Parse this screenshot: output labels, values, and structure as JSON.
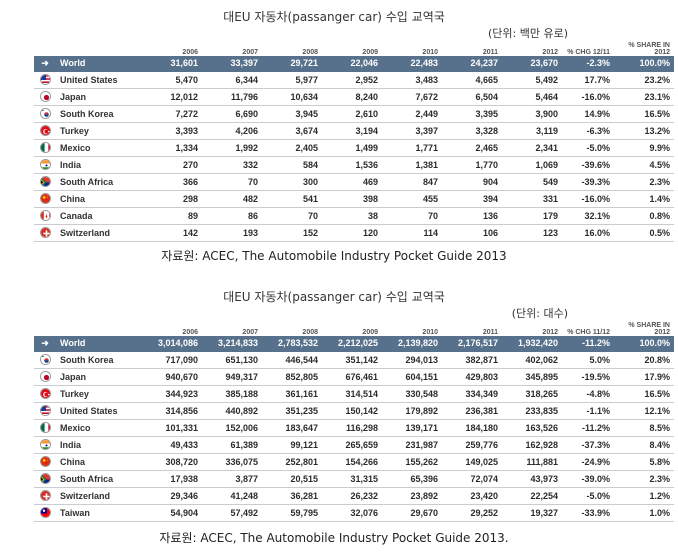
{
  "tables": [
    {
      "title": "대EU 자동차(passanger car) 수입 교역국",
      "unit": "(단위: 백만 유로)",
      "headers": [
        "2006",
        "2007",
        "2008",
        "2009",
        "2010",
        "2011",
        "2012",
        "% CHG 12/11",
        "% SHARE IN 2012"
      ],
      "world": {
        "label": "World",
        "cells": [
          "31,601",
          "33,397",
          "29,721",
          "22,046",
          "22,483",
          "24,237",
          "23,670",
          "-2.3%",
          "100.0%"
        ]
      },
      "rows": [
        {
          "country": "United States",
          "flag": "us",
          "cells": [
            "5,470",
            "6,344",
            "5,977",
            "2,952",
            "3,483",
            "4,665",
            "5,492",
            "17.7%",
            "23.2%"
          ]
        },
        {
          "country": "Japan",
          "flag": "jp",
          "cells": [
            "12,012",
            "11,796",
            "10,634",
            "8,240",
            "7,672",
            "6,504",
            "5,464",
            "-16.0%",
            "23.1%"
          ]
        },
        {
          "country": "South Korea",
          "flag": "kr",
          "cells": [
            "7,272",
            "6,690",
            "3,945",
            "2,610",
            "2,449",
            "3,395",
            "3,900",
            "14.9%",
            "16.5%"
          ]
        },
        {
          "country": "Turkey",
          "flag": "tr",
          "cells": [
            "3,393",
            "4,206",
            "3,674",
            "3,194",
            "3,397",
            "3,328",
            "3,119",
            "-6.3%",
            "13.2%"
          ]
        },
        {
          "country": "Mexico",
          "flag": "mx",
          "cells": [
            "1,334",
            "1,992",
            "2,405",
            "1,499",
            "1,771",
            "2,465",
            "2,341",
            "-5.0%",
            "9.9%"
          ]
        },
        {
          "country": "India",
          "flag": "in",
          "cells": [
            "270",
            "332",
            "584",
            "1,536",
            "1,381",
            "1,770",
            "1,069",
            "-39.6%",
            "4.5%"
          ]
        },
        {
          "country": "South Africa",
          "flag": "za",
          "cells": [
            "366",
            "70",
            "300",
            "469",
            "847",
            "904",
            "549",
            "-39.3%",
            "2.3%"
          ]
        },
        {
          "country": "China",
          "flag": "cn",
          "cells": [
            "298",
            "482",
            "541",
            "398",
            "455",
            "394",
            "331",
            "-16.0%",
            "1.4%"
          ]
        },
        {
          "country": "Canada",
          "flag": "ca",
          "cells": [
            "89",
            "86",
            "70",
            "38",
            "70",
            "136",
            "179",
            "32.1%",
            "0.8%"
          ]
        },
        {
          "country": "Switzerland",
          "flag": "ch",
          "cells": [
            "142",
            "193",
            "152",
            "120",
            "114",
            "106",
            "123",
            "16.0%",
            "0.5%"
          ]
        }
      ],
      "source": "자료원: ACEC, The Automobile Industry Pocket Guide 2013"
    },
    {
      "title": "대EU 자동차(passanger car) 수입 교역국",
      "unit": "(단위: 대수)",
      "headers": [
        "2006",
        "2007",
        "2008",
        "2009",
        "2010",
        "2011",
        "2012",
        "% CHG 11/12",
        "% SHARE IN 2012"
      ],
      "world": {
        "label": "World",
        "cells": [
          "3,014,086",
          "3,214,833",
          "2,783,532",
          "2,212,025",
          "2,139,820",
          "2,176,517",
          "1,932,420",
          "-11.2%",
          "100.0%"
        ]
      },
      "rows": [
        {
          "country": "South Korea",
          "flag": "kr",
          "cells": [
            "717,090",
            "651,130",
            "446,544",
            "351,142",
            "294,013",
            "382,871",
            "402,062",
            "5.0%",
            "20.8%"
          ]
        },
        {
          "country": "Japan",
          "flag": "jp",
          "cells": [
            "940,670",
            "949,317",
            "852,805",
            "676,461",
            "604,151",
            "429,803",
            "345,895",
            "-19.5%",
            "17.9%"
          ]
        },
        {
          "country": "Turkey",
          "flag": "tr",
          "cells": [
            "344,923",
            "385,188",
            "361,161",
            "314,514",
            "330,548",
            "334,349",
            "318,265",
            "-4.8%",
            "16.5%"
          ]
        },
        {
          "country": "United States",
          "flag": "us",
          "cells": [
            "314,856",
            "440,892",
            "351,235",
            "150,142",
            "179,892",
            "236,381",
            "233,835",
            "-1.1%",
            "12.1%"
          ]
        },
        {
          "country": "Mexico",
          "flag": "mx",
          "cells": [
            "101,331",
            "152,006",
            "183,647",
            "116,298",
            "139,171",
            "184,180",
            "163,526",
            "-11.2%",
            "8.5%"
          ]
        },
        {
          "country": "India",
          "flag": "in",
          "cells": [
            "49,433",
            "61,389",
            "99,121",
            "265,659",
            "231,987",
            "259,776",
            "162,928",
            "-37.3%",
            "8.4%"
          ]
        },
        {
          "country": "China",
          "flag": "cn",
          "cells": [
            "308,720",
            "336,075",
            "252,801",
            "154,266",
            "155,262",
            "149,025",
            "111,881",
            "-24.9%",
            "5.8%"
          ]
        },
        {
          "country": "South Africa",
          "flag": "za",
          "cells": [
            "17,938",
            "3,877",
            "20,515",
            "31,315",
            "65,396",
            "72,074",
            "43,973",
            "-39.0%",
            "2.3%"
          ]
        },
        {
          "country": "Switzerland",
          "flag": "ch",
          "cells": [
            "29,346",
            "41,248",
            "36,281",
            "26,232",
            "23,892",
            "23,420",
            "22,254",
            "-5.0%",
            "1.2%"
          ]
        },
        {
          "country": "Taiwan",
          "flag": "tw",
          "cells": [
            "54,904",
            "57,492",
            "59,795",
            "32,076",
            "29,670",
            "29,252",
            "19,327",
            "-33.9%",
            "1.0%"
          ]
        }
      ],
      "source": "자료원: ACEC, The Automobile Industry Pocket Guide 2013."
    }
  ]
}
